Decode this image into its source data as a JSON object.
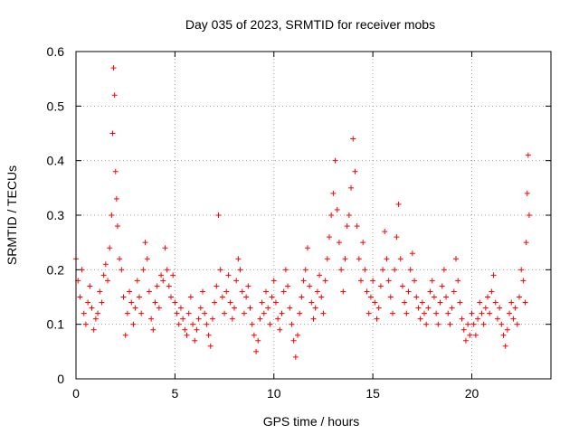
{
  "chart_data": {
    "type": "scatter",
    "title": "Day 035 of 2023, SRMTID for receiver mobs",
    "xlabel": "GPS time / hours",
    "ylabel": "SRMTID / TECUs",
    "xlim": [
      0,
      24
    ],
    "ylim": [
      0,
      0.6
    ],
    "xticks": [
      0,
      5,
      10,
      15,
      20
    ],
    "yticks": [
      0,
      0.1,
      0.2,
      0.3,
      0.4,
      0.5,
      0.6
    ],
    "xtick_labels": [
      "0",
      "5",
      "10",
      "15",
      "20"
    ],
    "ytick_labels": [
      "0",
      "0.1",
      "0.2",
      "0.3",
      "0.4",
      "0.5",
      "0.6"
    ],
    "grid": true,
    "marker": "plus",
    "color": "#ff0000",
    "series": [
      {
        "name": "SRMTID",
        "x": [
          0.0,
          0.1,
          0.2,
          0.3,
          0.4,
          0.5,
          0.6,
          0.7,
          0.8,
          0.9,
          1.0,
          1.1,
          1.2,
          1.3,
          1.4,
          1.5,
          1.6,
          1.7,
          1.8,
          1.85,
          1.9,
          1.95,
          2.0,
          2.05,
          2.1,
          2.2,
          2.3,
          2.4,
          2.5,
          2.6,
          2.7,
          2.8,
          2.9,
          3.0,
          3.1,
          3.2,
          3.3,
          3.4,
          3.5,
          3.6,
          3.7,
          3.8,
          3.9,
          4.0,
          4.1,
          4.2,
          4.3,
          4.4,
          4.5,
          4.6,
          4.7,
          4.8,
          4.9,
          5.0,
          5.1,
          5.2,
          5.3,
          5.4,
          5.5,
          5.6,
          5.7,
          5.8,
          5.9,
          6.0,
          6.1,
          6.2,
          6.3,
          6.4,
          6.5,
          6.6,
          6.7,
          6.8,
          6.9,
          7.0,
          7.1,
          7.2,
          7.3,
          7.4,
          7.5,
          7.6,
          7.7,
          7.8,
          7.9,
          8.0,
          8.1,
          8.2,
          8.3,
          8.4,
          8.5,
          8.6,
          8.7,
          8.8,
          8.9,
          9.0,
          9.1,
          9.2,
          9.3,
          9.4,
          9.5,
          9.6,
          9.7,
          9.8,
          9.9,
          10.0,
          10.1,
          10.2,
          10.3,
          10.4,
          10.5,
          10.6,
          10.7,
          10.8,
          10.9,
          11.0,
          11.1,
          11.2,
          11.3,
          11.4,
          11.5,
          11.6,
          11.7,
          11.8,
          11.9,
          12.0,
          12.1,
          12.2,
          12.3,
          12.4,
          12.5,
          12.6,
          12.7,
          12.8,
          12.9,
          13.0,
          13.1,
          13.2,
          13.3,
          13.4,
          13.5,
          13.6,
          13.7,
          13.8,
          13.9,
          14.0,
          14.1,
          14.2,
          14.3,
          14.4,
          14.5,
          14.6,
          14.7,
          14.8,
          14.9,
          15.0,
          15.1,
          15.2,
          15.3,
          15.4,
          15.5,
          15.6,
          15.7,
          15.8,
          15.9,
          16.0,
          16.1,
          16.2,
          16.3,
          16.4,
          16.5,
          16.6,
          16.7,
          16.8,
          16.9,
          17.0,
          17.1,
          17.2,
          17.3,
          17.4,
          17.5,
          17.6,
          17.7,
          17.8,
          17.9,
          18.0,
          18.1,
          18.2,
          18.3,
          18.4,
          18.5,
          18.6,
          18.7,
          18.8,
          18.9,
          19.0,
          19.1,
          19.2,
          19.3,
          19.4,
          19.5,
          19.6,
          19.7,
          19.8,
          19.9,
          20.0,
          20.1,
          20.2,
          20.3,
          20.4,
          20.5,
          20.6,
          20.7,
          20.8,
          20.9,
          21.0,
          21.1,
          21.2,
          21.3,
          21.4,
          21.5,
          21.6,
          21.7,
          21.8,
          21.9,
          22.0,
          22.1,
          22.2,
          22.3,
          22.4,
          22.5,
          22.6,
          22.7,
          22.75,
          22.8,
          22.85,
          22.9
        ],
        "y": [
          0.22,
          0.18,
          0.15,
          0.2,
          0.12,
          0.1,
          0.14,
          0.17,
          0.13,
          0.09,
          0.11,
          0.12,
          0.16,
          0.14,
          0.19,
          0.21,
          0.18,
          0.24,
          0.3,
          0.45,
          0.57,
          0.52,
          0.38,
          0.33,
          0.28,
          0.22,
          0.2,
          0.15,
          0.08,
          0.12,
          0.16,
          0.14,
          0.1,
          0.13,
          0.18,
          0.15,
          0.12,
          0.2,
          0.25,
          0.22,
          0.16,
          0.11,
          0.09,
          0.14,
          0.17,
          0.13,
          0.19,
          0.18,
          0.24,
          0.2,
          0.17,
          0.15,
          0.19,
          0.14,
          0.12,
          0.1,
          0.13,
          0.11,
          0.09,
          0.08,
          0.12,
          0.15,
          0.1,
          0.07,
          0.09,
          0.11,
          0.13,
          0.16,
          0.12,
          0.1,
          0.08,
          0.06,
          0.11,
          0.14,
          0.17,
          0.3,
          0.2,
          0.15,
          0.12,
          0.16,
          0.19,
          0.14,
          0.11,
          0.13,
          0.18,
          0.22,
          0.2,
          0.16,
          0.12,
          0.15,
          0.17,
          0.13,
          0.1,
          0.08,
          0.05,
          0.07,
          0.11,
          0.14,
          0.12,
          0.16,
          0.13,
          0.1,
          0.15,
          0.18,
          0.14,
          0.11,
          0.09,
          0.12,
          0.16,
          0.2,
          0.17,
          0.13,
          0.1,
          0.07,
          0.04,
          0.08,
          0.12,
          0.15,
          0.18,
          0.2,
          0.24,
          0.17,
          0.14,
          0.11,
          0.13,
          0.16,
          0.19,
          0.15,
          0.12,
          0.18,
          0.22,
          0.26,
          0.3,
          0.34,
          0.4,
          0.31,
          0.25,
          0.2,
          0.16,
          0.22,
          0.28,
          0.3,
          0.35,
          0.44,
          0.38,
          0.28,
          0.22,
          0.18,
          0.25,
          0.2,
          0.16,
          0.12,
          0.15,
          0.18,
          0.14,
          0.11,
          0.13,
          0.17,
          0.2,
          0.27,
          0.22,
          0.18,
          0.15,
          0.12,
          0.2,
          0.26,
          0.32,
          0.22,
          0.17,
          0.14,
          0.12,
          0.16,
          0.2,
          0.23,
          0.18,
          0.15,
          0.13,
          0.11,
          0.14,
          0.12,
          0.1,
          0.13,
          0.16,
          0.18,
          0.15,
          0.12,
          0.1,
          0.14,
          0.17,
          0.2,
          0.15,
          0.12,
          0.1,
          0.13,
          0.16,
          0.22,
          0.18,
          0.14,
          0.11,
          0.09,
          0.07,
          0.1,
          0.08,
          0.12,
          0.1,
          0.08,
          0.11,
          0.14,
          0.12,
          0.1,
          0.13,
          0.15,
          0.12,
          0.16,
          0.19,
          0.14,
          0.11,
          0.13,
          0.1,
          0.08,
          0.06,
          0.09,
          0.12,
          0.14,
          0.11,
          0.13,
          0.1,
          0.15,
          0.2,
          0.18,
          0.14,
          0.25,
          0.34,
          0.41,
          0.3
        ]
      }
    ]
  }
}
